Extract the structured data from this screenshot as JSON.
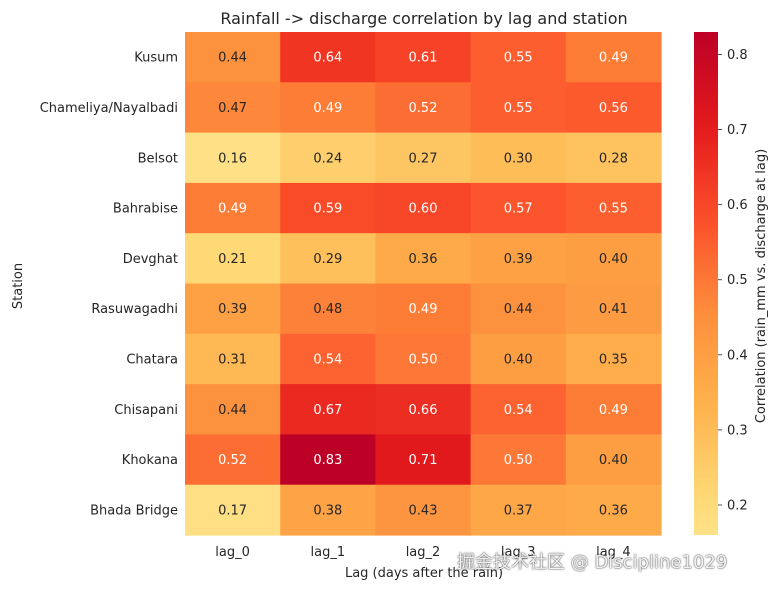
{
  "chart_data": {
    "type": "heatmap",
    "title": "Rainfall -> discharge correlation by lag and station",
    "xlabel": "Lag (days after the rain)",
    "ylabel": "Station",
    "colorbar_label": "Correlation (rain_mm vs. discharge at lag)",
    "x_categories": [
      "lag_0",
      "lag_1",
      "lag_2",
      "lag_3",
      "lag_4"
    ],
    "y_categories": [
      "Kusum",
      "Chameliya/Nayalbadi",
      "Belsot",
      "Bahrabise",
      "Devghat",
      "Rasuwagadhi",
      "Chatara",
      "Chisapani",
      "Khokana",
      "Bhada Bridge"
    ],
    "values": [
      [
        0.44,
        0.64,
        0.61,
        0.55,
        0.49
      ],
      [
        0.47,
        0.49,
        0.52,
        0.55,
        0.56
      ],
      [
        0.16,
        0.24,
        0.27,
        0.3,
        0.28
      ],
      [
        0.49,
        0.59,
        0.6,
        0.57,
        0.55
      ],
      [
        0.21,
        0.29,
        0.36,
        0.39,
        0.4
      ],
      [
        0.39,
        0.48,
        0.49,
        0.44,
        0.41
      ],
      [
        0.31,
        0.54,
        0.5,
        0.4,
        0.35
      ],
      [
        0.44,
        0.67,
        0.66,
        0.54,
        0.49
      ],
      [
        0.52,
        0.83,
        0.71,
        0.5,
        0.4
      ],
      [
        0.17,
        0.38,
        0.43,
        0.37,
        0.36
      ]
    ],
    "value_labels": [
      [
        "0.44",
        "0.64",
        "0.61",
        "0.55",
        "0.49"
      ],
      [
        "0.47",
        "0.49",
        "0.52",
        "0.55",
        "0.56"
      ],
      [
        "0.16",
        "0.24",
        "0.27",
        "0.30",
        "0.28"
      ],
      [
        "0.49",
        "0.59",
        "0.60",
        "0.57",
        "0.55"
      ],
      [
        "0.21",
        "0.29",
        "0.36",
        "0.39",
        "0.40"
      ],
      [
        "0.39",
        "0.48",
        "0.49",
        "0.44",
        "0.41"
      ],
      [
        "0.31",
        "0.54",
        "0.50",
        "0.40",
        "0.35"
      ],
      [
        "0.44",
        "0.67",
        "0.66",
        "0.54",
        "0.49"
      ],
      [
        "0.52",
        "0.83",
        "0.71",
        "0.50",
        "0.40"
      ],
      [
        "0.17",
        "0.38",
        "0.43",
        "0.37",
        "0.36"
      ]
    ],
    "colormap": "YlOrRd",
    "colorbar_range": [
      0.16,
      0.83
    ],
    "colorbar_ticks": [
      0.2,
      0.3,
      0.4,
      0.5,
      0.6,
      0.7,
      0.8
    ],
    "colorbar_tick_labels": [
      "0.2",
      "0.3",
      "0.4",
      "0.5",
      "0.6",
      "0.7",
      "0.8"
    ],
    "annotation_dark_text_color": "#262626",
    "annotation_light_text_color": "#ffffff",
    "axis_text_color": "#262626"
  },
  "watermark": {
    "text": "掘金技术社区 @ Discipline1029"
  }
}
